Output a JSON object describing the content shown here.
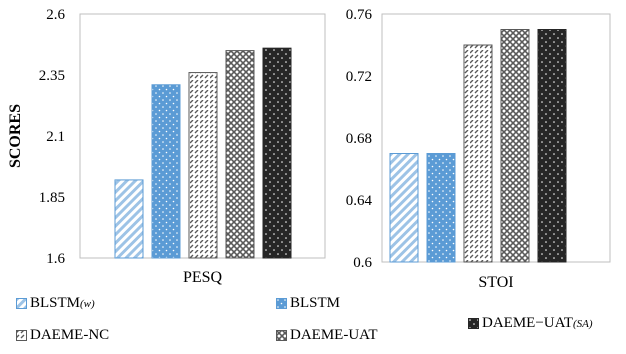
{
  "chart_data": [
    {
      "type": "bar",
      "categories": [
        "PESQ"
      ],
      "series": [
        {
          "name": "BLSTM(w)",
          "values": [
            1.92
          ]
        },
        {
          "name": "BLSTM",
          "values": [
            2.31
          ]
        },
        {
          "name": "DAEME-NC",
          "values": [
            2.36
          ]
        },
        {
          "name": "DAEME-UAT",
          "values": [
            2.45
          ]
        },
        {
          "name": "DAEME-UAT(SA)",
          "values": [
            2.46
          ]
        }
      ],
      "ylabel": "SCORES",
      "ylim": [
        1.6,
        2.6
      ],
      "yticks": [
        "1.6",
        "1.85",
        "2.1",
        "2.35",
        "2.6"
      ],
      "grid": false
    },
    {
      "type": "bar",
      "categories": [
        "STOI"
      ],
      "series": [
        {
          "name": "BLSTM(w)",
          "values": [
            0.67
          ]
        },
        {
          "name": "BLSTM",
          "values": [
            0.67
          ]
        },
        {
          "name": "DAEME-NC",
          "values": [
            0.74
          ]
        },
        {
          "name": "DAEME-UAT",
          "values": [
            0.75
          ]
        },
        {
          "name": "DAEME-UAT(SA)",
          "values": [
            0.75
          ]
        }
      ],
      "ylim": [
        0.6,
        0.76
      ],
      "yticks": [
        "0.6",
        "0.64",
        "0.68",
        "0.72",
        "0.76"
      ],
      "grid": false
    }
  ],
  "legend": {
    "placement": "bottom",
    "items": [
      {
        "base": "BLSTM",
        "sub": "(w)",
        "pattern": "diag-blue"
      },
      {
        "base": "BLSTM",
        "sub": "",
        "pattern": "dots-blue"
      },
      {
        "base": "DAEME−UAT",
        "sub": "(SA)",
        "pattern": "dots-black"
      },
      {
        "base": "DAEME-NC",
        "sub": "",
        "pattern": "diag-gray"
      },
      {
        "base": "DAEME-UAT",
        "sub": "",
        "pattern": "cross-gray"
      }
    ]
  },
  "colors": {
    "blstm_w": "#9dc3e6",
    "blstm": "#5b9bd5",
    "daeme_nc": "#595959",
    "daeme_uat": "#595959",
    "daeme_uat_sa": "#262626"
  }
}
